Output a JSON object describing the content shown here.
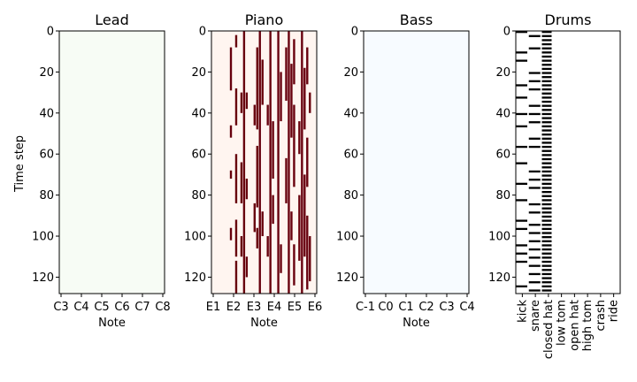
{
  "chart_data": [
    {
      "type": "heatmap",
      "title": "Lead",
      "xlabel": "Note",
      "ylabel": "Time step",
      "x_ticks": [
        "C3",
        "C4",
        "C5",
        "C6",
        "C7",
        "C8"
      ],
      "y_ticks": [
        0,
        20,
        40,
        60,
        80,
        100,
        120
      ],
      "ylim": [
        0,
        128
      ],
      "fill_color": "#f7fcf5",
      "note_color": "#00441b",
      "cells": []
    },
    {
      "type": "heatmap",
      "title": "Piano",
      "xlabel": "Note",
      "ylabel": "",
      "x_ticks": [
        "E1",
        "E2",
        "E3",
        "E4",
        "E5",
        "E6"
      ],
      "y_ticks": [
        0,
        20,
        40,
        60,
        80,
        100,
        120
      ],
      "ylim": [
        0,
        128
      ],
      "fill_color": "#fff5f0",
      "note_color": "#67000d",
      "cells": [
        [
          47,
          8,
          21
        ],
        [
          47,
          46,
          6
        ],
        [
          47,
          68,
          4
        ],
        [
          47,
          96,
          6
        ],
        [
          49,
          2,
          6
        ],
        [
          49,
          28,
          18
        ],
        [
          49,
          60,
          24
        ],
        [
          49,
          92,
          18
        ],
        [
          49,
          112,
          16
        ],
        [
          51,
          30,
          10
        ],
        [
          51,
          64,
          20
        ],
        [
          51,
          100,
          10
        ],
        [
          52,
          0,
          128
        ],
        [
          53,
          30,
          8
        ],
        [
          53,
          72,
          10
        ],
        [
          53,
          110,
          10
        ],
        [
          56,
          36,
          10
        ],
        [
          56,
          84,
          14
        ],
        [
          57,
          8,
          40
        ],
        [
          57,
          56,
          30
        ],
        [
          57,
          96,
          10
        ],
        [
          58,
          0,
          128
        ],
        [
          59,
          14,
          22
        ],
        [
          59,
          88,
          12
        ],
        [
          61,
          36,
          10
        ],
        [
          61,
          100,
          10
        ],
        [
          62,
          0,
          128
        ],
        [
          63,
          44,
          28
        ],
        [
          63,
          80,
          14
        ],
        [
          65,
          0,
          128
        ],
        [
          66,
          20,
          24
        ],
        [
          66,
          104,
          14
        ],
        [
          68,
          8,
          26
        ],
        [
          68,
          62,
          22
        ],
        [
          69,
          0,
          128
        ],
        [
          70,
          16,
          36
        ],
        [
          70,
          88,
          14
        ],
        [
          71,
          4,
          22
        ],
        [
          71,
          36,
          40
        ],
        [
          71,
          104,
          20
        ],
        [
          73,
          44,
          16
        ],
        [
          73,
          80,
          32
        ],
        [
          74,
          0,
          128
        ],
        [
          75,
          18,
          30
        ],
        [
          75,
          70,
          40
        ],
        [
          76,
          8,
          18
        ],
        [
          76,
          52,
          24
        ],
        [
          76,
          90,
          36
        ],
        [
          77,
          30,
          10
        ],
        [
          77,
          100,
          22
        ]
      ]
    },
    {
      "type": "heatmap",
      "title": "Bass",
      "xlabel": "Note",
      "ylabel": "",
      "x_ticks": [
        "C-1",
        "C0",
        "C1",
        "C2",
        "C3",
        "C4"
      ],
      "y_ticks": [
        0,
        20,
        40,
        60,
        80,
        100,
        120
      ],
      "ylim": [
        0,
        128
      ],
      "fill_color": "#f7fbff",
      "note_color": "#08306b",
      "cells": []
    },
    {
      "type": "heatmap",
      "title": "Drums",
      "xlabel": "",
      "ylabel": "",
      "x_ticks": [
        "kick",
        "snare",
        "closed hat",
        "low tom",
        "open hat",
        "high tom",
        "crash",
        "ride"
      ],
      "y_ticks": [
        0,
        20,
        40,
        60,
        80,
        100,
        120
      ],
      "ylim": [
        0,
        128
      ],
      "fill_color": "#ffffff",
      "note_color": "#000000",
      "kick_steps": [
        0,
        10,
        14,
        26,
        32,
        40,
        46,
        56,
        64,
        74,
        82,
        92,
        96,
        104,
        108,
        112,
        124
      ],
      "snare_steps": [
        2,
        8,
        20,
        24,
        28,
        36,
        40,
        44,
        52,
        56,
        68,
        72,
        76,
        84,
        88,
        94,
        98,
        102,
        106,
        110,
        114,
        118,
        122,
        126
      ]
    }
  ]
}
